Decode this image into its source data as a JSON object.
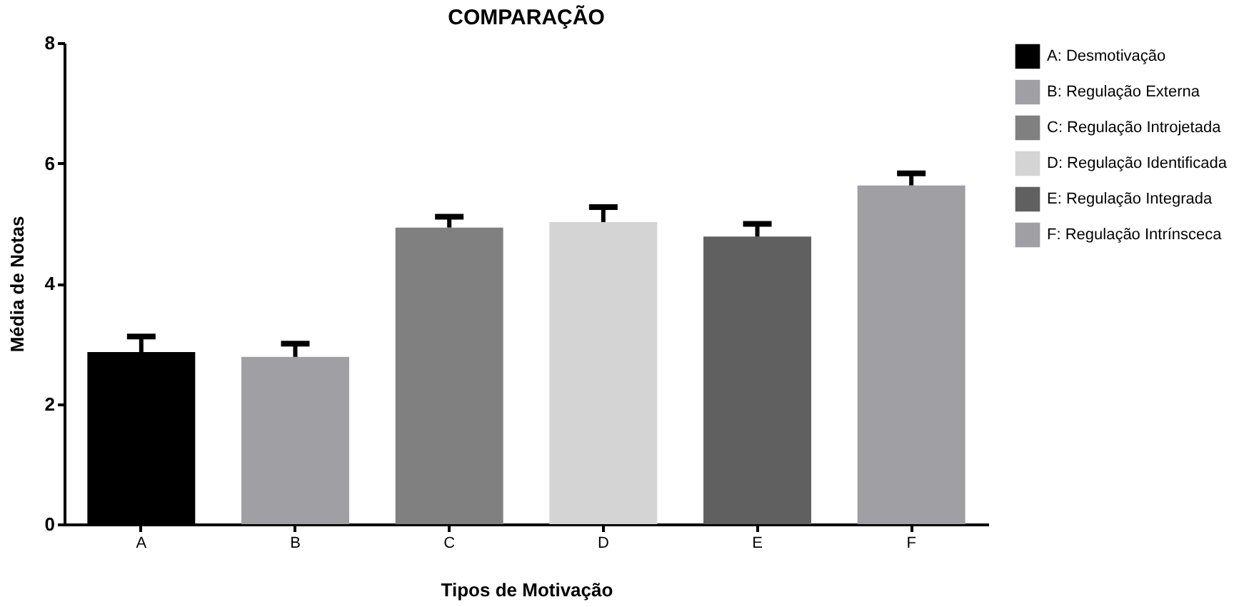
{
  "chart_data": {
    "type": "bar",
    "title": "COMPARAÇÃO",
    "xlabel": "Tipos de Motivação",
    "ylabel": "Média de Notas",
    "categories": [
      "A",
      "B",
      "C",
      "D",
      "E",
      "F"
    ],
    "series": [
      {
        "name": "A: Desmotivação",
        "color": "#000000",
        "values": [
          2.86,
          null,
          null,
          null,
          null,
          null
        ],
        "errors": [
          [
            2.86,
            3.12
          ],
          null,
          null,
          null,
          null,
          null
        ]
      },
      {
        "name": "B: Regulação Externa",
        "color": "#a0a0a4",
        "values": [
          null,
          2.78,
          null,
          null,
          null,
          null
        ],
        "errors": [
          null,
          [
            2.78,
            3.0
          ],
          null,
          null,
          null,
          null
        ]
      },
      {
        "name": "C: Regulação Introjetada",
        "color": "#808080",
        "values": [
          null,
          null,
          4.93,
          null,
          null,
          null
        ],
        "errors": [
          null,
          null,
          [
            4.93,
            5.11
          ],
          null,
          null,
          null
        ]
      },
      {
        "name": "D: Regulação Identificada",
        "color": "#d4d4d4",
        "values": [
          null,
          null,
          null,
          5.02,
          null,
          null
        ],
        "errors": [
          null,
          null,
          null,
          [
            5.02,
            5.27
          ],
          null,
          null
        ]
      },
      {
        "name": "E: Regulação Integrada",
        "color": "#606060",
        "values": [
          null,
          null,
          null,
          null,
          4.78,
          null
        ],
        "errors": [
          null,
          null,
          null,
          null,
          [
            4.78,
            4.99
          ],
          null
        ]
      },
      {
        "name": "F: Regulação Intrínsceca",
        "color": "#a0a0a4",
        "values": [
          null,
          null,
          null,
          null,
          null,
          5.63
        ],
        "errors": [
          null,
          null,
          null,
          null,
          null,
          [
            5.63,
            5.83
          ]
        ]
      }
    ],
    "ylim": [
      0,
      8
    ],
    "yticks": [
      0,
      2,
      4,
      6,
      8
    ],
    "grid": false,
    "legend": "right"
  }
}
